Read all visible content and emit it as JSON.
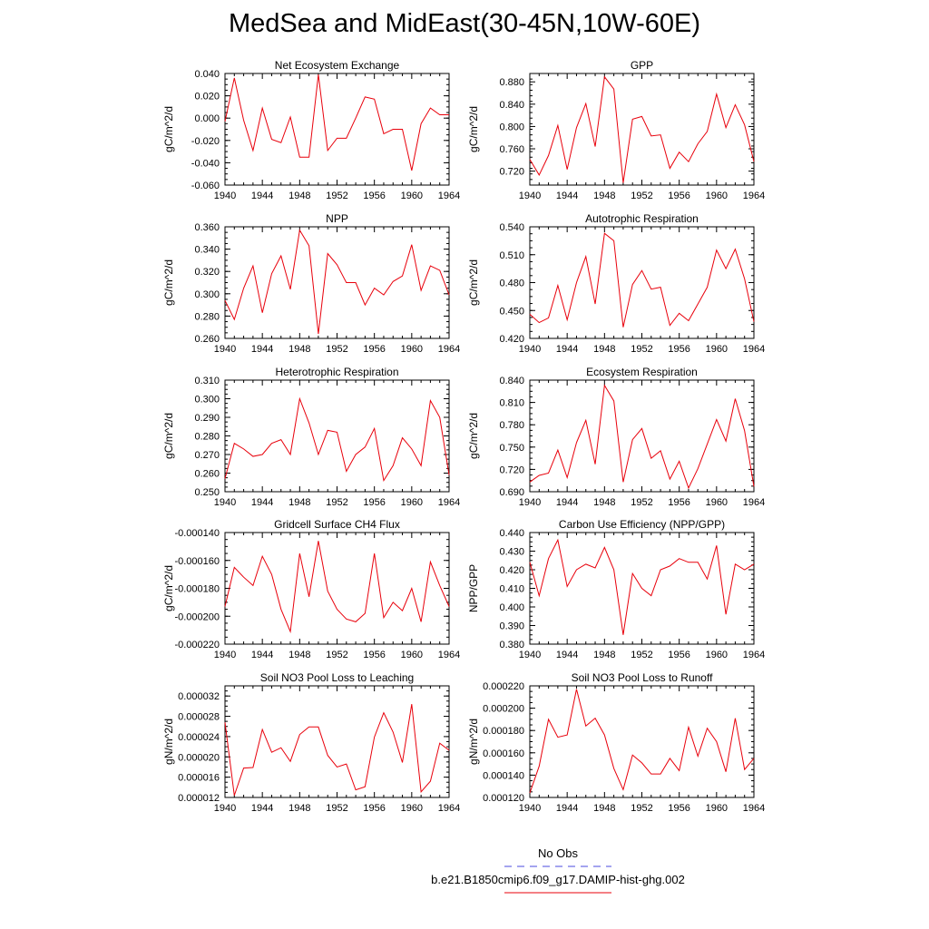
{
  "title": "MedSea and MidEast(30-45N,10W-60E)",
  "colors": {
    "series": "#e8000b",
    "obs": "#4a4adf"
  },
  "legend": [
    {
      "label": "No Obs",
      "style": "dashed",
      "color": "#4a4adf"
    },
    {
      "label": "b.e21.B1850cmip6.f09_g17.DAMIP-hist-ghg.002",
      "style": "solid",
      "color": "#e8000b"
    }
  ],
  "chart_data": [
    {
      "type": "line",
      "title": "Net Ecosystem Exchange",
      "ylabel": "gC/m^2/d",
      "xlim": [
        1940,
        1964
      ],
      "xticks": [
        "1940",
        "1944",
        "1948",
        "1952",
        "1956",
        "1960",
        "1964"
      ],
      "ylim": [
        -0.06,
        0.04
      ],
      "yticks": [
        "0.040",
        "0.020",
        "0.000",
        "-0.020",
        "-0.040",
        "-0.060"
      ],
      "x": [
        1940,
        1941,
        1942,
        1943,
        1944,
        1945,
        1946,
        1947,
        1948,
        1949,
        1950,
        1951,
        1952,
        1953,
        1954,
        1955,
        1956,
        1957,
        1958,
        1959,
        1960,
        1961,
        1962,
        1963,
        1964
      ],
      "values": [
        -0.003,
        0.036,
        -0.002,
        -0.029,
        0.009,
        -0.019,
        -0.022,
        0.001,
        -0.035,
        -0.035,
        0.039,
        -0.029,
        -0.018,
        -0.018,
        0.0,
        0.019,
        0.017,
        -0.014,
        -0.01,
        -0.01,
        -0.047,
        -0.005,
        0.009,
        0.003,
        0.003
      ]
    },
    {
      "type": "line",
      "title": "GPP",
      "ylabel": "gC/m^2/d",
      "xlim": [
        1940,
        1964
      ],
      "xticks": [
        "1940",
        "1944",
        "1948",
        "1952",
        "1956",
        "1960",
        "1964"
      ],
      "ylim": [
        0.695,
        0.895
      ],
      "yticks": [
        "0.880",
        "0.840",
        "0.800",
        "0.760",
        "0.720"
      ],
      "x": [
        1940,
        1941,
        1942,
        1943,
        1944,
        1945,
        1946,
        1947,
        1948,
        1949,
        1950,
        1951,
        1952,
        1953,
        1954,
        1955,
        1956,
        1957,
        1958,
        1959,
        1960,
        1961,
        1962,
        1963,
        1964
      ],
      "values": [
        0.741,
        0.713,
        0.748,
        0.802,
        0.723,
        0.798,
        0.841,
        0.764,
        0.889,
        0.867,
        0.699,
        0.813,
        0.818,
        0.783,
        0.785,
        0.725,
        0.754,
        0.737,
        0.769,
        0.791,
        0.858,
        0.798,
        0.839,
        0.803,
        0.737
      ]
    },
    {
      "type": "line",
      "title": "NPP",
      "ylabel": "gC/m^2/d",
      "xlim": [
        1940,
        1964
      ],
      "xticks": [
        "1940",
        "1944",
        "1948",
        "1952",
        "1956",
        "1960",
        "1964"
      ],
      "ylim": [
        0.26,
        0.36
      ],
      "yticks": [
        "0.360",
        "0.340",
        "0.320",
        "0.300",
        "0.280",
        "0.260"
      ],
      "x": [
        1940,
        1941,
        1942,
        1943,
        1944,
        1945,
        1946,
        1947,
        1948,
        1949,
        1950,
        1951,
        1952,
        1953,
        1954,
        1955,
        1956,
        1957,
        1958,
        1959,
        1960,
        1961,
        1962,
        1963,
        1964
      ],
      "values": [
        0.294,
        0.277,
        0.305,
        0.325,
        0.283,
        0.318,
        0.334,
        0.304,
        0.357,
        0.343,
        0.264,
        0.336,
        0.326,
        0.31,
        0.31,
        0.29,
        0.305,
        0.299,
        0.311,
        0.316,
        0.344,
        0.303,
        0.325,
        0.321,
        0.299
      ]
    },
    {
      "type": "line",
      "title": "Autotrophic Respiration",
      "ylabel": "gC/m^2/d",
      "xlim": [
        1940,
        1964
      ],
      "xticks": [
        "1940",
        "1944",
        "1948",
        "1952",
        "1956",
        "1960",
        "1964"
      ],
      "ylim": [
        0.42,
        0.54
      ],
      "yticks": [
        "0.540",
        "0.510",
        "0.480",
        "0.450",
        "0.420"
      ],
      "x": [
        1940,
        1941,
        1942,
        1943,
        1944,
        1945,
        1946,
        1947,
        1948,
        1949,
        1950,
        1951,
        1952,
        1953,
        1954,
        1955,
        1956,
        1957,
        1958,
        1959,
        1960,
        1961,
        1962,
        1963,
        1964
      ],
      "values": [
        0.446,
        0.437,
        0.442,
        0.477,
        0.44,
        0.48,
        0.508,
        0.457,
        0.533,
        0.525,
        0.432,
        0.478,
        0.493,
        0.473,
        0.475,
        0.434,
        0.447,
        0.439,
        0.457,
        0.475,
        0.515,
        0.495,
        0.516,
        0.484,
        0.438
      ]
    },
    {
      "type": "line",
      "title": "Heterotrophic Respiration",
      "ylabel": "gC/m^2/d",
      "xlim": [
        1940,
        1964
      ],
      "xticks": [
        "1940",
        "1944",
        "1948",
        "1952",
        "1956",
        "1960",
        "1964"
      ],
      "ylim": [
        0.25,
        0.31
      ],
      "yticks": [
        "0.310",
        "0.300",
        "0.290",
        "0.280",
        "0.270",
        "0.260",
        "0.250"
      ],
      "x": [
        1940,
        1941,
        1942,
        1943,
        1944,
        1945,
        1946,
        1947,
        1948,
        1949,
        1950,
        1951,
        1952,
        1953,
        1954,
        1955,
        1956,
        1957,
        1958,
        1959,
        1960,
        1961,
        1962,
        1963,
        1964
      ],
      "values": [
        0.257,
        0.276,
        0.273,
        0.269,
        0.27,
        0.276,
        0.278,
        0.27,
        0.3,
        0.287,
        0.27,
        0.283,
        0.282,
        0.261,
        0.27,
        0.274,
        0.284,
        0.256,
        0.264,
        0.279,
        0.273,
        0.264,
        0.299,
        0.29,
        0.259
      ]
    },
    {
      "type": "line",
      "title": "Ecosystem Respiration",
      "ylabel": "gC/m^2/d",
      "xlim": [
        1940,
        1964
      ],
      "xticks": [
        "1940",
        "1944",
        "1948",
        "1952",
        "1956",
        "1960",
        "1964"
      ],
      "ylim": [
        0.69,
        0.84
      ],
      "yticks": [
        "0.840",
        "0.810",
        "0.780",
        "0.750",
        "0.720",
        "0.690"
      ],
      "x": [
        1940,
        1941,
        1942,
        1943,
        1944,
        1945,
        1946,
        1947,
        1948,
        1949,
        1950,
        1951,
        1952,
        1953,
        1954,
        1955,
        1956,
        1957,
        1958,
        1959,
        1960,
        1961,
        1962,
        1963,
        1964
      ],
      "values": [
        0.703,
        0.712,
        0.715,
        0.746,
        0.709,
        0.756,
        0.786,
        0.727,
        0.833,
        0.812,
        0.703,
        0.76,
        0.775,
        0.735,
        0.745,
        0.707,
        0.731,
        0.695,
        0.721,
        0.754,
        0.787,
        0.758,
        0.815,
        0.772,
        0.697
      ]
    },
    {
      "type": "line",
      "title": "Gridcell Surface CH4 Flux",
      "ylabel": "gC/m^2/d",
      "xlim": [
        1940,
        1964
      ],
      "xticks": [
        "1940",
        "1944",
        "1948",
        "1952",
        "1956",
        "1960",
        "1964"
      ],
      "ylim": [
        -0.00022,
        -0.00014
      ],
      "yticks": [
        "-0.000140",
        "-0.000160",
        "-0.000180",
        "-0.000200",
        "-0.000220"
      ],
      "x": [
        1940,
        1941,
        1942,
        1943,
        1944,
        1945,
        1946,
        1947,
        1948,
        1949,
        1950,
        1951,
        1952,
        1953,
        1954,
        1955,
        1956,
        1957,
        1958,
        1959,
        1960,
        1961,
        1962,
        1963,
        1964
      ],
      "values": [
        -0.000193,
        -0.000165,
        -0.000172,
        -0.000178,
        -0.000157,
        -0.00017,
        -0.000195,
        -0.000211,
        -0.000155,
        -0.000186,
        -0.000146,
        -0.000182,
        -0.000195,
        -0.000202,
        -0.000204,
        -0.000198,
        -0.000155,
        -0.000201,
        -0.00019,
        -0.000196,
        -0.00018,
        -0.000204,
        -0.000161,
        -0.000178,
        -0.000193
      ]
    },
    {
      "type": "line",
      "title": "Carbon Use Efficiency (NPP/GPP)",
      "ylabel": "NPP/GPP",
      "xlim": [
        1940,
        1964
      ],
      "xticks": [
        "1940",
        "1944",
        "1948",
        "1952",
        "1956",
        "1960",
        "1964"
      ],
      "ylim": [
        0.38,
        0.44
      ],
      "yticks": [
        "0.440",
        "0.430",
        "0.420",
        "0.410",
        "0.400",
        "0.390",
        "0.380"
      ],
      "x": [
        1940,
        1941,
        1942,
        1943,
        1944,
        1945,
        1946,
        1947,
        1948,
        1949,
        1950,
        1951,
        1952,
        1953,
        1954,
        1955,
        1956,
        1957,
        1958,
        1959,
        1960,
        1961,
        1962,
        1963,
        1964
      ],
      "values": [
        0.424,
        0.406,
        0.426,
        0.436,
        0.411,
        0.42,
        0.423,
        0.421,
        0.432,
        0.42,
        0.385,
        0.418,
        0.41,
        0.406,
        0.42,
        0.422,
        0.426,
        0.424,
        0.424,
        0.415,
        0.433,
        0.396,
        0.423,
        0.42,
        0.423
      ]
    },
    {
      "type": "line",
      "title": "Soil NO3 Pool Loss to Leaching",
      "ylabel": "gN/m^2/d",
      "xlim": [
        1940,
        1964
      ],
      "xticks": [
        "1940",
        "1944",
        "1948",
        "1952",
        "1956",
        "1960",
        "1964"
      ],
      "ylim": [
        1.2e-05,
        3.4e-05
      ],
      "yticks": [
        "0.000032",
        "0.000028",
        "0.000024",
        "0.000020",
        "0.000016",
        "0.000012"
      ],
      "x": [
        1940,
        1941,
        1942,
        1943,
        1944,
        1945,
        1946,
        1947,
        1948,
        1949,
        1950,
        1951,
        1952,
        1953,
        1954,
        1955,
        1956,
        1957,
        1958,
        1959,
        1960,
        1961,
        1962,
        1963,
        1964
      ],
      "values": [
        2.68e-05,
        1.24e-05,
        1.78e-05,
        1.79e-05,
        2.54e-05,
        2.09e-05,
        2.18e-05,
        1.91e-05,
        2.44e-05,
        2.59e-05,
        2.59e-05,
        2.03e-05,
        1.8e-05,
        1.86e-05,
        1.35e-05,
        1.41e-05,
        2.39e-05,
        2.87e-05,
        2.49e-05,
        1.89e-05,
        3.04e-05,
        1.31e-05,
        1.52e-05,
        2.27e-05,
        2.13e-05
      ]
    },
    {
      "type": "line",
      "title": "Soil NO3 Pool Loss to Runoff",
      "ylabel": "gN/m^2/d",
      "xlim": [
        1940,
        1964
      ],
      "xticks": [
        "1940",
        "1944",
        "1948",
        "1952",
        "1956",
        "1960",
        "1964"
      ],
      "ylim": [
        0.00012,
        0.00022
      ],
      "yticks": [
        "0.000220",
        "0.000200",
        "0.000180",
        "0.000160",
        "0.000140",
        "0.000120"
      ],
      "x": [
        1940,
        1941,
        1942,
        1943,
        1944,
        1945,
        1946,
        1947,
        1948,
        1949,
        1950,
        1951,
        1952,
        1953,
        1954,
        1955,
        1956,
        1957,
        1958,
        1959,
        1960,
        1961,
        1962,
        1963,
        1964
      ],
      "values": [
        0.000124,
        0.000148,
        0.00019,
        0.000174,
        0.000176,
        0.000217,
        0.000184,
        0.000191,
        0.000176,
        0.000146,
        0.000127,
        0.000158,
        0.000151,
        0.000141,
        0.000141,
        0.000155,
        0.000144,
        0.000183,
        0.000157,
        0.000182,
        0.00017,
        0.000143,
        0.000191,
        0.000145,
        0.000155
      ]
    }
  ]
}
